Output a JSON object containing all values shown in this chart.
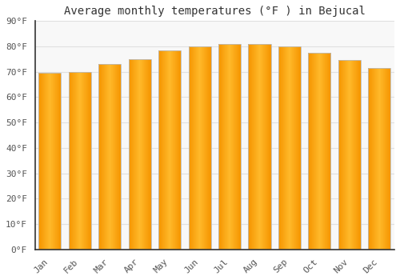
{
  "title": "Average monthly temperatures (°F ) in Bejucal",
  "months": [
    "Jan",
    "Feb",
    "Mar",
    "Apr",
    "May",
    "Jun",
    "Jul",
    "Aug",
    "Sep",
    "Oct",
    "Nov",
    "Dec"
  ],
  "values": [
    69.5,
    70,
    73,
    75,
    78.5,
    80,
    81,
    81,
    80,
    77.5,
    74.5,
    71.5
  ],
  "bar_color_center": "#FFB92A",
  "bar_color_edge": "#F59500",
  "background_color": "#FFFFFF",
  "plot_bg_color": "#F8F8F8",
  "grid_color": "#E0E0E0",
  "spine_color": "#333333",
  "text_color": "#555555",
  "ylim": [
    0,
    90
  ],
  "yticks": [
    0,
    10,
    20,
    30,
    40,
    50,
    60,
    70,
    80,
    90
  ],
  "title_fontsize": 10,
  "tick_fontsize": 8,
  "bar_width": 0.75
}
